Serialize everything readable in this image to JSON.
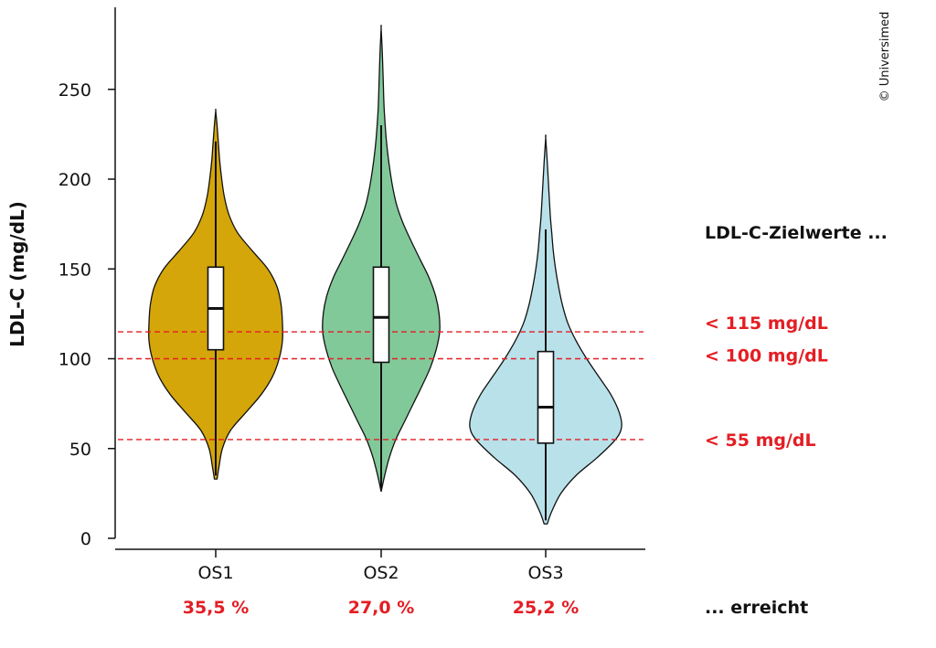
{
  "chart_data": {
    "type": "violin",
    "title": "",
    "ylabel": "LDL-C (mg/dL)",
    "xlabel": "",
    "ylim": [
      0,
      290
    ],
    "yticks": [
      0,
      50,
      100,
      150,
      200,
      250
    ],
    "grid": false,
    "categories": [
      "OS1",
      "OS2",
      "OS3"
    ],
    "series": [
      {
        "name": "OS1",
        "color": "#d4a60a",
        "box": {
          "whisker_low": 35,
          "q1": 105,
          "median": 128,
          "q3": 151,
          "whisker_high": 221
        },
        "range": [
          33,
          238
        ],
        "density": [
          [
            33,
            0.02
          ],
          [
            40,
            0.05
          ],
          [
            50,
            0.1
          ],
          [
            60,
            0.22
          ],
          [
            70,
            0.45
          ],
          [
            80,
            0.68
          ],
          [
            90,
            0.85
          ],
          [
            100,
            0.95
          ],
          [
            110,
            1.0
          ],
          [
            120,
            1.0
          ],
          [
            130,
            0.98
          ],
          [
            140,
            0.92
          ],
          [
            150,
            0.78
          ],
          [
            160,
            0.55
          ],
          [
            170,
            0.33
          ],
          [
            180,
            0.2
          ],
          [
            190,
            0.13
          ],
          [
            200,
            0.09
          ],
          [
            210,
            0.06
          ],
          [
            220,
            0.04
          ],
          [
            230,
            0.02
          ],
          [
            238,
            0.0
          ]
        ]
      },
      {
        "name": "OS2",
        "color": "#82c99a",
        "box": {
          "whisker_low": 28,
          "q1": 98,
          "median": 123,
          "q3": 151,
          "whisker_high": 230
        },
        "range": [
          26,
          284
        ],
        "density": [
          [
            26,
            0.0
          ],
          [
            35,
            0.06
          ],
          [
            45,
            0.14
          ],
          [
            55,
            0.25
          ],
          [
            65,
            0.4
          ],
          [
            75,
            0.55
          ],
          [
            85,
            0.7
          ],
          [
            95,
            0.84
          ],
          [
            105,
            0.94
          ],
          [
            115,
            1.0
          ],
          [
            125,
            0.99
          ],
          [
            135,
            0.93
          ],
          [
            145,
            0.82
          ],
          [
            155,
            0.67
          ],
          [
            165,
            0.52
          ],
          [
            175,
            0.38
          ],
          [
            185,
            0.27
          ],
          [
            195,
            0.2
          ],
          [
            205,
            0.15
          ],
          [
            215,
            0.11
          ],
          [
            225,
            0.08
          ],
          [
            240,
            0.05
          ],
          [
            255,
            0.035
          ],
          [
            270,
            0.02
          ],
          [
            284,
            0.0
          ]
        ]
      },
      {
        "name": "OS3",
        "color": "#b9e1ea",
        "box": {
          "whisker_low": 10,
          "q1": 53,
          "median": 73,
          "q3": 104,
          "whisker_high": 172
        },
        "range": [
          8,
          223
        ],
        "density": [
          [
            8,
            0.02
          ],
          [
            15,
            0.08
          ],
          [
            25,
            0.2
          ],
          [
            35,
            0.4
          ],
          [
            45,
            0.68
          ],
          [
            55,
            0.92
          ],
          [
            62,
            1.0
          ],
          [
            70,
            0.97
          ],
          [
            80,
            0.86
          ],
          [
            90,
            0.7
          ],
          [
            100,
            0.54
          ],
          [
            110,
            0.4
          ],
          [
            120,
            0.29
          ],
          [
            130,
            0.22
          ],
          [
            140,
            0.17
          ],
          [
            150,
            0.13
          ],
          [
            160,
            0.1
          ],
          [
            170,
            0.08
          ],
          [
            180,
            0.06
          ],
          [
            195,
            0.04
          ],
          [
            210,
            0.02
          ],
          [
            223,
            0.0
          ]
        ]
      }
    ],
    "reference_lines": [
      {
        "value": 115,
        "label": "< 115 mg/dL",
        "color": "#e31e24",
        "style": "dashed"
      },
      {
        "value": 100,
        "label": "< 100 mg/dL",
        "color": "#e31e24",
        "style": "dashed"
      },
      {
        "value": 55,
        "label": "< 55 mg/dL",
        "color": "#e31e24",
        "style": "dashed"
      }
    ],
    "percentages": [
      "35,5 %",
      "27,0 %",
      "25,2 %"
    ],
    "side_title": "LDL-C-Zielwerte ...",
    "bottom_note": "... erreicht"
  },
  "copyright": "© Universimed"
}
